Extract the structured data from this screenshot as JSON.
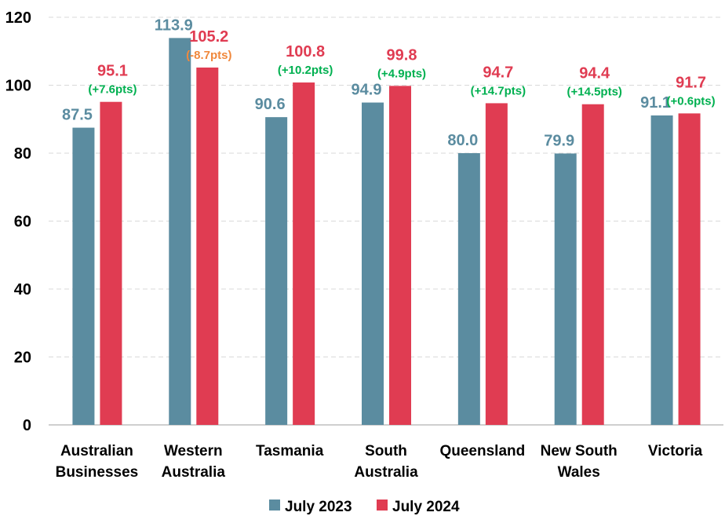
{
  "chart_data": {
    "type": "bar",
    "title": "",
    "xlabel": "",
    "ylabel": "",
    "ylim": [
      0,
      120
    ],
    "yticks": [
      0,
      20,
      40,
      60,
      80,
      100,
      120
    ],
    "grid": true,
    "legend_position": "bottom",
    "categories": [
      [
        "Australian",
        "Businesses"
      ],
      [
        "Western",
        "Australia"
      ],
      [
        "Tasmania"
      ],
      [
        "South",
        "Australia"
      ],
      [
        "Queensland"
      ],
      [
        "New South",
        "Wales"
      ],
      [
        "Victoria"
      ]
    ],
    "series": [
      {
        "name": "July 2023",
        "color": "#5B8CA0",
        "values": [
          87.5,
          113.9,
          90.6,
          94.9,
          80.0,
          79.9,
          91.1
        ],
        "labels": [
          "87.5",
          "113.9",
          "90.6",
          "94.9",
          "80.0",
          "79.9",
          "91.1"
        ]
      },
      {
        "name": "July 2024",
        "color": "#E03C52",
        "values": [
          95.1,
          105.2,
          100.8,
          99.8,
          94.7,
          94.4,
          91.7
        ],
        "labels": [
          "95.1",
          "105.2",
          "100.8",
          "99.8",
          "94.7",
          "94.4",
          "91.7"
        ]
      }
    ],
    "changes": [
      "(+7.6pts)",
      "(-8.7pts)",
      "(+10.2pts)",
      "(+4.9pts)",
      "(+14.7pts)",
      "(+14.5pts)",
      "(+0.6pts)"
    ],
    "change_colors": {
      "positive": "#00B050",
      "negative": "#F0883C"
    }
  }
}
